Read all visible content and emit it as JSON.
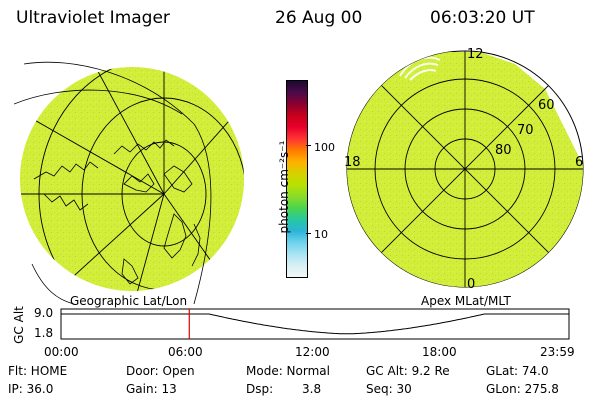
{
  "header": {
    "title": "Ultraviolet Imager",
    "date": "26 Aug 00",
    "time": "06:03:20 UT"
  },
  "panels": {
    "left_label": "Geographic Lat/Lon",
    "right_label": "Apex MLat/MLT"
  },
  "colorbar": {
    "unit_label": "photon cm⁻²s⁻¹",
    "tick_100": "100",
    "tick_10": "10",
    "colors": [
      "#1a0a2e",
      "#4b0a4a",
      "#8b0030",
      "#c8001a",
      "#e8002a",
      "#ff3333",
      "#ff7a00",
      "#ffb000",
      "#d8d000",
      "#b8e000",
      "#8cdc2a",
      "#4bd54b",
      "#28c8a0",
      "#2ab4d8",
      "#6ed2ee",
      "#a8e4f2",
      "#d8f0f4",
      "#f0f8f8"
    ]
  },
  "mlt_grid": {
    "mlat_labels": [
      "60",
      "70",
      "80"
    ],
    "mlt_labels": {
      "noon": "12",
      "dusk": "18",
      "dawn": "6",
      "midnight": "0"
    }
  },
  "timeline": {
    "axis_label": "GC Alt",
    "y_max": "9.0",
    "y_min": "1.8",
    "x_ticks": [
      "00:00",
      "06:00",
      "12:00",
      "18:00",
      "23:59"
    ],
    "current_hour": 6.06,
    "marker_color": "#e00000"
  },
  "status": {
    "row1": {
      "filter": "Flt: HOME",
      "door": "Door: Open",
      "mode": "Mode: Normal",
      "gc_alt": "GC Alt: 9.2 Re",
      "glat": "GLat:  74.0"
    },
    "row2": {
      "ip": "IP: 36.0",
      "gain": "Gain: 13",
      "dsp_label": "Dsp:",
      "dsp_value": "3.8",
      "seq": "Seq: 30",
      "glon": "GLon: 275.8"
    }
  },
  "colors": {
    "image_fill": "#d2ee3a",
    "image_speckle": "#b2dc30",
    "glow": "#a8ec4a"
  }
}
